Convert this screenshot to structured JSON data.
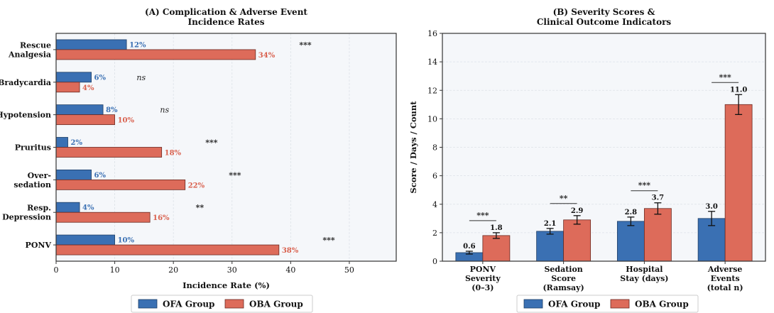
{
  "colors": {
    "ofa": "#3a70b3",
    "oba": "#dd6b5a",
    "ofa_text": "#3a70b3",
    "oba_text": "#d9604d",
    "plot_bg": "#f5f7fa",
    "grid": "#dde2e8"
  },
  "chart_data": [
    {
      "type": "bar",
      "orientation": "horizontal",
      "title_lines": [
        "(A) Complication & Adverse Event",
        "Incidence Rates"
      ],
      "xlabel": "Incidence Rate (%)",
      "ylabel": "",
      "xlim": [
        0,
        58
      ],
      "xticks": [
        0,
        10,
        20,
        30,
        40,
        50
      ],
      "grid": true,
      "legend_placement": "bottom",
      "categories": [
        {
          "label_lines": [
            "Rescue",
            "Analgesia"
          ],
          "ofa": 12,
          "oba": 34,
          "ofa_label": "12%",
          "oba_label": "34%",
          "sig": "***",
          "sig_italic": false
        },
        {
          "label_lines": [
            "Bradycardia"
          ],
          "ofa": 6,
          "oba": 4,
          "ofa_label": "6%",
          "oba_label": "4%",
          "sig": "ns",
          "sig_italic": true
        },
        {
          "label_lines": [
            "Hypotension"
          ],
          "ofa": 8,
          "oba": 10,
          "ofa_label": "8%",
          "oba_label": "10%",
          "sig": "ns",
          "sig_italic": true
        },
        {
          "label_lines": [
            "Pruritus"
          ],
          "ofa": 2,
          "oba": 18,
          "ofa_label": "2%",
          "oba_label": "18%",
          "sig": "***",
          "sig_italic": false
        },
        {
          "label_lines": [
            "Over-",
            "sedation"
          ],
          "ofa": 6,
          "oba": 22,
          "ofa_label": "6%",
          "oba_label": "22%",
          "sig": "***",
          "sig_italic": false
        },
        {
          "label_lines": [
            "Resp.",
            "Depression"
          ],
          "ofa": 4,
          "oba": 16,
          "ofa_label": "4%",
          "oba_label": "16%",
          "sig": "**",
          "sig_italic": false
        },
        {
          "label_lines": [
            "PONV"
          ],
          "ofa": 10,
          "oba": 38,
          "ofa_label": "10%",
          "oba_label": "38%",
          "sig": "***",
          "sig_italic": false
        }
      ],
      "legend": [
        "OFA Group",
        "OBA Group"
      ]
    },
    {
      "type": "bar",
      "orientation": "vertical",
      "title_lines": [
        "(B) Severity Scores &",
        "Clinical Outcome Indicators"
      ],
      "xlabel": "",
      "ylabel": "Score / Days / Count",
      "ylim": [
        0,
        16
      ],
      "yticks": [
        0,
        2,
        4,
        6,
        8,
        10,
        12,
        14,
        16
      ],
      "grid": true,
      "legend_placement": "bottom",
      "categories": [
        {
          "label_lines": [
            "PONV",
            "Severity",
            "(0–3)"
          ],
          "ofa": 0.6,
          "oba": 1.8,
          "ofa_err": 0.1,
          "oba_err": 0.2,
          "ofa_label": "0.6",
          "oba_label": "1.8",
          "sig": "***"
        },
        {
          "label_lines": [
            "Sedation",
            "Score",
            "(Ramsay)"
          ],
          "ofa": 2.1,
          "oba": 2.9,
          "ofa_err": 0.2,
          "oba_err": 0.3,
          "ofa_label": "2.1",
          "oba_label": "2.9",
          "sig": "**"
        },
        {
          "label_lines": [
            "Hospital",
            "Stay (days)"
          ],
          "ofa": 2.8,
          "oba": 3.7,
          "ofa_err": 0.3,
          "oba_err": 0.4,
          "ofa_label": "2.8",
          "oba_label": "3.7",
          "sig": "***"
        },
        {
          "label_lines": [
            "Adverse",
            "Events",
            "(total n)"
          ],
          "ofa": 3.0,
          "oba": 11.0,
          "ofa_err": 0.5,
          "oba_err": 0.7,
          "ofa_label": "3.0",
          "oba_label": "11.0",
          "sig": "***"
        }
      ],
      "legend": [
        "OFA Group",
        "OBA Group"
      ]
    }
  ]
}
